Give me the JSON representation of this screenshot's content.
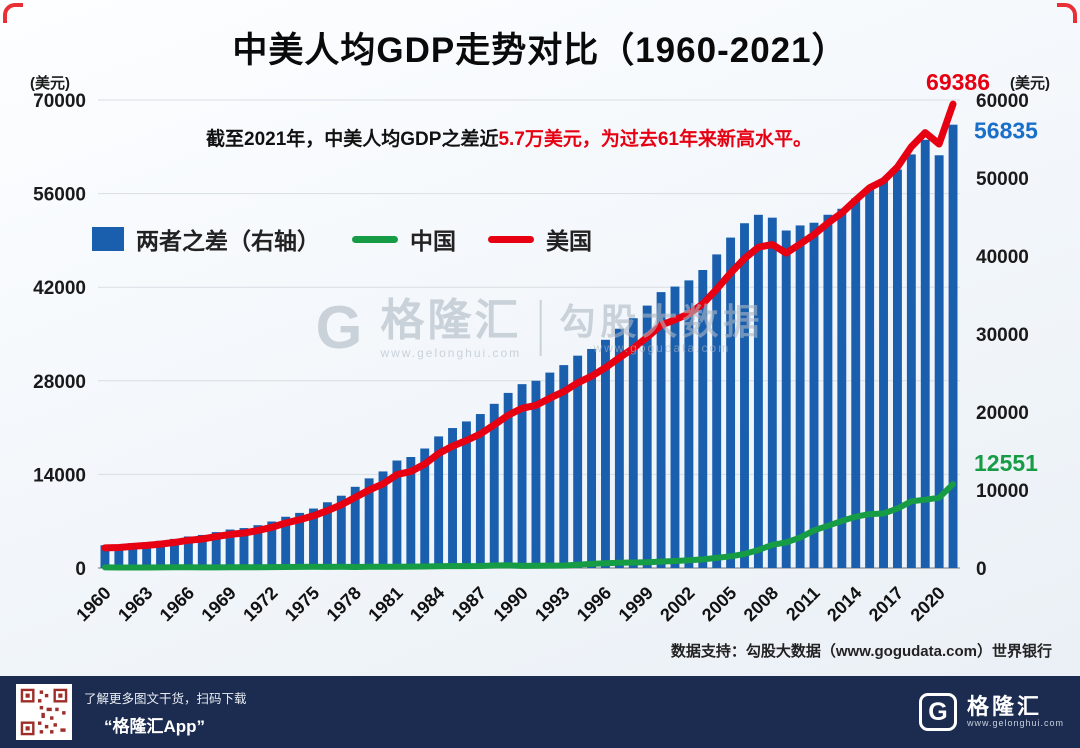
{
  "title": "中美人均GDP走势对比（1960-2021）",
  "unit_left": "(美元)",
  "unit_right": "(美元)",
  "annotation": {
    "prefix": "截至2021年，中美人均GDP之差近",
    "highlight": "5.7万美元，为过去61年来新高水平。"
  },
  "legend": [
    {
      "label": "两者之差（右轴）",
      "type": "bar",
      "color": "#1a5fae"
    },
    {
      "label": "中国",
      "type": "line",
      "color": "#169c44"
    },
    {
      "label": "美国",
      "type": "line",
      "color": "#e60012"
    }
  ],
  "end_labels": {
    "us": "69386",
    "diff": "56835",
    "china": "12551"
  },
  "source": "数据支持：勾股大数据（www.gogudata.com）世界银行",
  "watermark": {
    "brand": "格隆汇",
    "brand_url": "www.gelonghui.com",
    "partner": "勾股大数据",
    "partner_url": "www.gogudata.com"
  },
  "footer": {
    "qr_caption_line1": "了解更多图文干货，扫码下载",
    "qr_caption_line2": "“格隆汇App”",
    "logo_text": "格隆汇",
    "logo_url": "www.gelonghui.com"
  },
  "chart_data": {
    "type": "bar",
    "subtype": "combo-bar-line",
    "title": "中美人均GDP走势对比（1960-2021）",
    "xlabel": "",
    "ylabel_left": "(美元)",
    "ylabel_right": "(美元)",
    "grid": true,
    "legend_position": "top-left-inside",
    "x": [
      1960,
      1961,
      1962,
      1963,
      1964,
      1965,
      1966,
      1967,
      1968,
      1969,
      1970,
      1971,
      1972,
      1973,
      1974,
      1975,
      1976,
      1977,
      1978,
      1979,
      1980,
      1981,
      1982,
      1983,
      1984,
      1985,
      1986,
      1987,
      1988,
      1989,
      1990,
      1991,
      1992,
      1993,
      1994,
      1995,
      1996,
      1997,
      1998,
      1999,
      2000,
      2001,
      2002,
      2003,
      2004,
      2005,
      2006,
      2007,
      2008,
      2009,
      2010,
      2011,
      2012,
      2013,
      2014,
      2015,
      2016,
      2017,
      2018,
      2019,
      2020,
      2021
    ],
    "x_tick_step": 3,
    "left_axis": {
      "min": 0,
      "max": 70000,
      "ticks": [
        0,
        14000,
        28000,
        42000,
        56000,
        70000
      ]
    },
    "right_axis": {
      "min": 0,
      "max": 60000,
      "ticks": [
        0,
        10000,
        20000,
        30000,
        40000,
        50000,
        60000
      ]
    },
    "series": [
      {
        "name": "两者之差（右轴）",
        "type": "bar",
        "axis": "right",
        "color": "#1a5fae",
        "values": [
          2917,
          2991,
          3173,
          3301,
          3489,
          3730,
          4042,
          4239,
          4605,
          4932,
          5121,
          5490,
          5962,
          6569,
          7066,
          7623,
          8427,
          9268,
          10409,
          11490,
          12380,
          13779,
          14231,
          15319,
          16871,
          17943,
          18789,
          19738,
          21047,
          22449,
          23571,
          24009,
          25053,
          26010,
          27222,
          28081,
          29259,
          30677,
          32025,
          33642,
          35371,
          36081,
          36874,
          38207,
          40204,
          42362,
          44200,
          45282,
          44915,
          43268,
          43918,
          44265,
          45286,
          46056,
          47371,
          48796,
          49780,
          51079,
          53020,
          54903,
          52914,
          56835
        ]
      },
      {
        "name": "中国",
        "type": "line",
        "axis": "left",
        "color": "#169c44",
        "values": [
          90,
          76,
          71,
          74,
          85,
          98,
          104,
          97,
          91,
          100,
          113,
          119,
          132,
          157,
          160,
          178,
          165,
          185,
          156,
          184,
          195,
          197,
          203,
          225,
          250,
          294,
          282,
          301,
          370,
          408,
          318,
          333,
          366,
          377,
          473,
          610,
          709,
          782,
          829,
          873,
          959,
          1053,
          1149,
          1289,
          1509,
          1753,
          2099,
          2694,
          3468,
          3832,
          4550,
          5618,
          6317,
          7051,
          7679,
          8067,
          8148,
          8879,
          9977,
          10217,
          10500,
          12551
        ]
      },
      {
        "name": "美国",
        "type": "line",
        "axis": "left",
        "color": "#e60012",
        "values": [
          3007,
          3067,
          3244,
          3375,
          3574,
          3828,
          4146,
          4336,
          4696,
          5032,
          5234,
          5609,
          6094,
          6726,
          7226,
          7801,
          8592,
          9453,
          10565,
          11674,
          12575,
          13976,
          14434,
          15544,
          17121,
          18237,
          19071,
          20039,
          21417,
          22857,
          23889,
          24342,
          25419,
          26387,
          27695,
          28691,
          29968,
          31459,
          32854,
          34515,
          36330,
          37134,
          38023,
          39496,
          41713,
          44115,
          46299,
          47976,
          48383,
          47100,
          48468,
          49883,
          51603,
          53107,
          55050,
          56863,
          57928,
          59958,
          62997,
          65120,
          63414,
          69386
        ]
      }
    ]
  }
}
